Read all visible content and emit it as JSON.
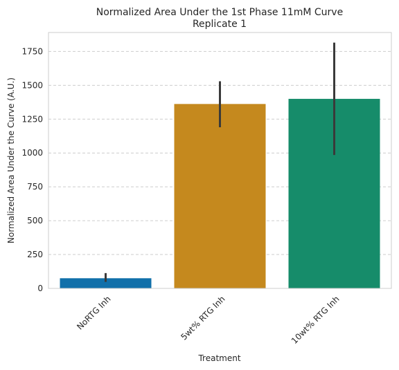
{
  "chart_data": {
    "type": "bar",
    "title": "Normalized Area Under the 1st Phase 11mM Curve\nReplicate 1",
    "title_lines": [
      "Normalized Area Under the 1st Phase 11mM Curve",
      "Replicate 1"
    ],
    "xlabel": "Treatment",
    "ylabel": "Normalized Area Under the Curve (A.U.)",
    "categories": [
      "NoRTG Inh",
      "5wt% RTG Inh",
      "10wt% RTG Inh"
    ],
    "values": [
      75,
      1362,
      1400
    ],
    "error_low": [
      48,
      1190,
      985
    ],
    "error_high": [
      113,
      1530,
      1815
    ],
    "colors": [
      "#1170aa",
      "#c5891e",
      "#168c6a"
    ],
    "error_color": "#3a3a3a",
    "ylim": [
      0,
      1890
    ],
    "yticks": [
      0,
      250,
      500,
      750,
      1000,
      1250,
      1500,
      1750
    ],
    "grid": true,
    "grid_axis": "y",
    "grid_color": "#cccccc",
    "legend": "none",
    "xtick_rotation": 45
  }
}
